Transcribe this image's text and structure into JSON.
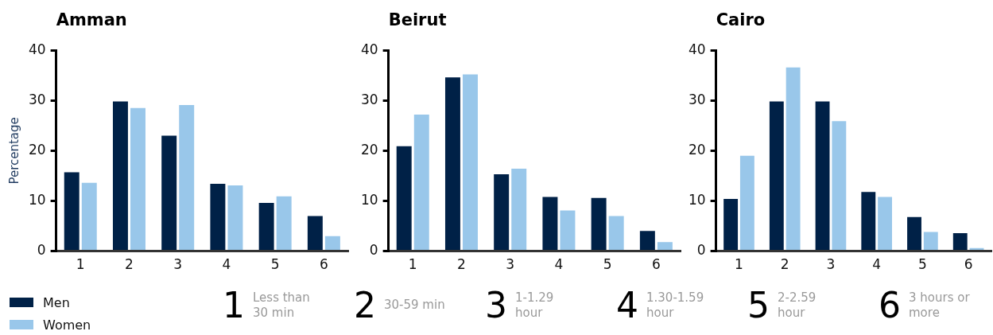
{
  "chart_data": [
    {
      "type": "bar",
      "title": "Amman",
      "ylabel": "Percentage",
      "categories": [
        "1",
        "2",
        "3",
        "4",
        "5",
        "6"
      ],
      "series": [
        {
          "name": "Men",
          "color": "#002147",
          "values": [
            15.7,
            29.8,
            23,
            13.4,
            9.6,
            7
          ]
        },
        {
          "name": "Women",
          "color": "#99c7ea",
          "values": [
            13.6,
            28.5,
            29.1,
            13.1,
            10.9,
            3
          ]
        }
      ],
      "ylim": [
        0,
        40
      ],
      "yticks": [
        0,
        10,
        20,
        30,
        40
      ],
      "grid": false,
      "legend": "bottom left",
      "annotations": [
        "1 Less than 30 min",
        "2 30-59 min",
        "3 1-1.29 hour",
        "4 1.30-1.59 hour",
        "5 2-2.59 hour",
        "6 3 hours or more"
      ]
    },
    {
      "type": "bar",
      "title": "Beirut",
      "categories": [
        "1",
        "2",
        "3",
        "4",
        "5",
        "6"
      ],
      "series": [
        {
          "color": "#002147",
          "values": [
            20.9,
            34.6,
            15.3,
            10.8,
            10.6,
            4
          ]
        },
        {
          "color": "#99c7ea",
          "values": [
            27.2,
            35.2,
            16.4,
            8.1,
            7,
            1.8
          ]
        }
      ],
      "ylim": [
        0,
        40
      ],
      "yticks": [
        0,
        10,
        20,
        30,
        40
      ],
      "grid": false,
      "legend": false
    },
    {
      "type": "bar",
      "title": "Cairo",
      "categories": [
        "1",
        "2",
        "3",
        "4",
        "5",
        "6"
      ],
      "series": [
        {
          "color": "#002147",
          "values": [
            10.4,
            29.8,
            29.8,
            11.8,
            6.8,
            3.6
          ]
        },
        {
          "color": "#99c7ea",
          "values": [
            19,
            36.6,
            25.9,
            10.8,
            3.8,
            0.6
          ]
        }
      ],
      "ylim": [
        0,
        40
      ],
      "yticks": [
        0,
        10,
        20,
        30,
        40
      ],
      "grid": false,
      "legend": false
    }
  ]
}
